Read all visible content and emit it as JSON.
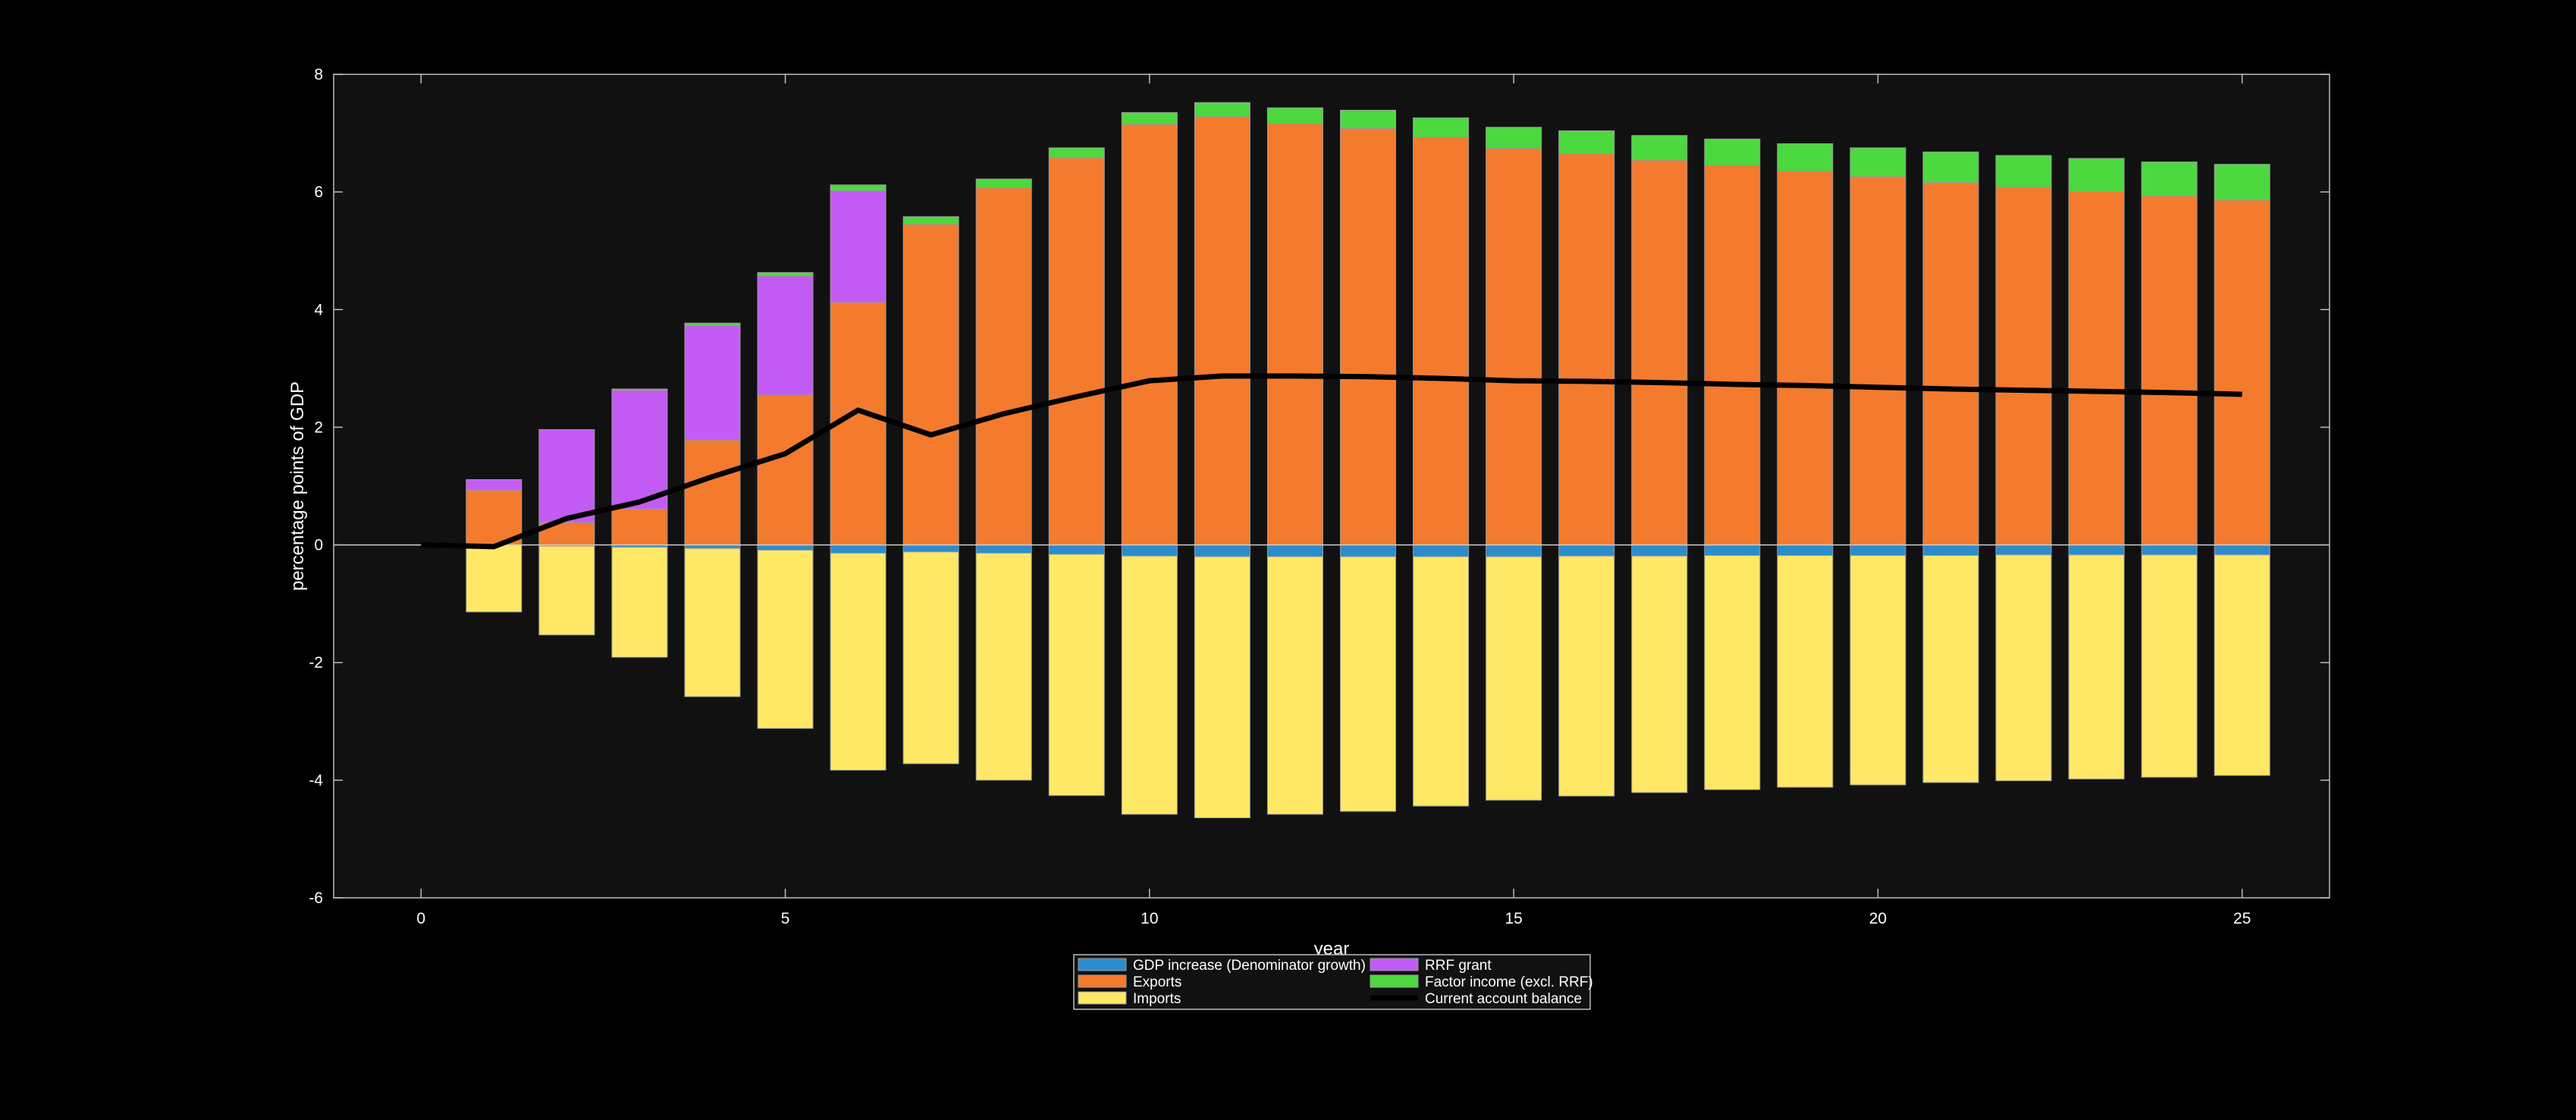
{
  "chart_data": {
    "type": "bar",
    "stacked": true,
    "title": "",
    "xlabel": "year",
    "ylabel": "percentage points of GDP",
    "xlim": [
      -1.2,
      26.2
    ],
    "ylim": [
      -6,
      8
    ],
    "xticks": [
      0,
      5,
      10,
      15,
      20,
      25
    ],
    "yticks": [
      -6,
      -4,
      -2,
      0,
      2,
      4,
      6,
      8
    ],
    "grid": false,
    "legend_position": "bottom-center",
    "x": [
      1,
      2,
      3,
      4,
      5,
      6,
      7,
      8,
      9,
      10,
      11,
      12,
      13,
      14,
      15,
      16,
      17,
      18,
      19,
      20,
      21,
      22,
      23,
      24,
      25
    ],
    "series": [
      {
        "name": "GDP increase (Denominator growth)",
        "color": "#2b8ccc",
        "values": [
          0,
          -0.02,
          -0.04,
          -0.06,
          -0.09,
          -0.14,
          -0.12,
          -0.14,
          -0.16,
          -0.19,
          -0.2,
          -0.2,
          -0.2,
          -0.2,
          -0.2,
          -0.19,
          -0.19,
          -0.18,
          -0.18,
          -0.18,
          -0.18,
          -0.17,
          -0.17,
          -0.17,
          -0.17
        ]
      },
      {
        "name": "Exports",
        "color": "#f47a2e",
        "values": [
          0.93,
          0.38,
          0.61,
          1.78,
          2.55,
          4.12,
          5.45,
          6.07,
          6.58,
          7.15,
          7.28,
          7.16,
          7.08,
          6.93,
          6.74,
          6.65,
          6.54,
          6.45,
          6.35,
          6.26,
          6.16,
          6.08,
          6.01,
          5.93,
          5.86
        ]
      },
      {
        "name": "Imports",
        "color": "#ffe866",
        "values": [
          -1.14,
          -1.51,
          -1.87,
          -2.52,
          -3.03,
          -3.69,
          -3.6,
          -3.86,
          -4.1,
          -4.39,
          -4.44,
          -4.38,
          -4.33,
          -4.24,
          -4.14,
          -4.08,
          -4.02,
          -3.98,
          -3.94,
          -3.9,
          -3.86,
          -3.84,
          -3.81,
          -3.78,
          -3.75
        ]
      },
      {
        "name": "RRF grant",
        "color": "#c35cf5",
        "values": [
          0.18,
          1.58,
          2.02,
          1.95,
          2.02,
          1.9,
          0,
          0,
          0,
          0,
          0,
          0,
          0,
          0,
          0,
          0,
          0,
          0,
          0,
          0,
          0,
          0,
          0,
          0,
          0
        ]
      },
      {
        "name": "Factor income (excl. RRF)",
        "color": "#4cd940",
        "values": [
          0,
          0,
          0.02,
          0.04,
          0.06,
          0.1,
          0.13,
          0.15,
          0.17,
          0.2,
          0.24,
          0.27,
          0.31,
          0.33,
          0.36,
          0.39,
          0.42,
          0.45,
          0.47,
          0.49,
          0.52,
          0.54,
          0.56,
          0.58,
          0.61
        ]
      },
      {
        "name": "Current account balance",
        "color": "#000000",
        "type": "line",
        "x": [
          0,
          1,
          2,
          3,
          4,
          5,
          6,
          7,
          8,
          9,
          10,
          11,
          12,
          13,
          14,
          15,
          16,
          17,
          18,
          19,
          20,
          21,
          22,
          23,
          24,
          25
        ],
        "values": [
          0,
          -0.03,
          0.45,
          0.73,
          1.16,
          1.55,
          2.29,
          1.87,
          2.23,
          2.52,
          2.79,
          2.87,
          2.87,
          2.86,
          2.83,
          2.79,
          2.78,
          2.76,
          2.73,
          2.71,
          2.68,
          2.65,
          2.63,
          2.61,
          2.59,
          2.56
        ]
      }
    ]
  }
}
